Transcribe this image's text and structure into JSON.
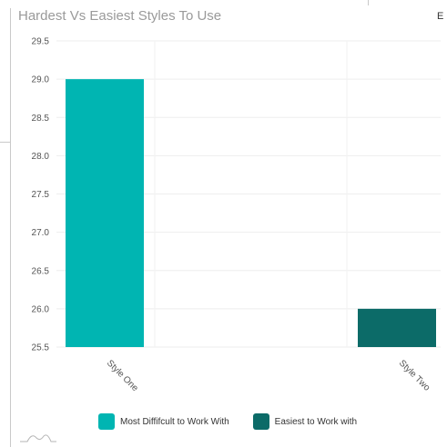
{
  "chart_data": {
    "type": "bar",
    "title": "Hardest Vs Easiest Styles To Use",
    "categories": [
      "Style One",
      "Style Two"
    ],
    "series": [
      {
        "name": "Most Diffifcult to Work With",
        "color": "#00b5b2",
        "values": [
          29.0,
          null
        ]
      },
      {
        "name": "Easiest to Work with",
        "color": "#0c6b68",
        "values": [
          null,
          26.0
        ]
      }
    ],
    "yticks": [
      "25.5",
      "26.0",
      "26.5",
      "27.0",
      "27.5",
      "28.0",
      "28.5",
      "29.0",
      "29.5"
    ],
    "ylim": [
      25.5,
      29.5
    ],
    "grid": true,
    "legend_position": "bottom"
  },
  "corner_glyph": "E"
}
